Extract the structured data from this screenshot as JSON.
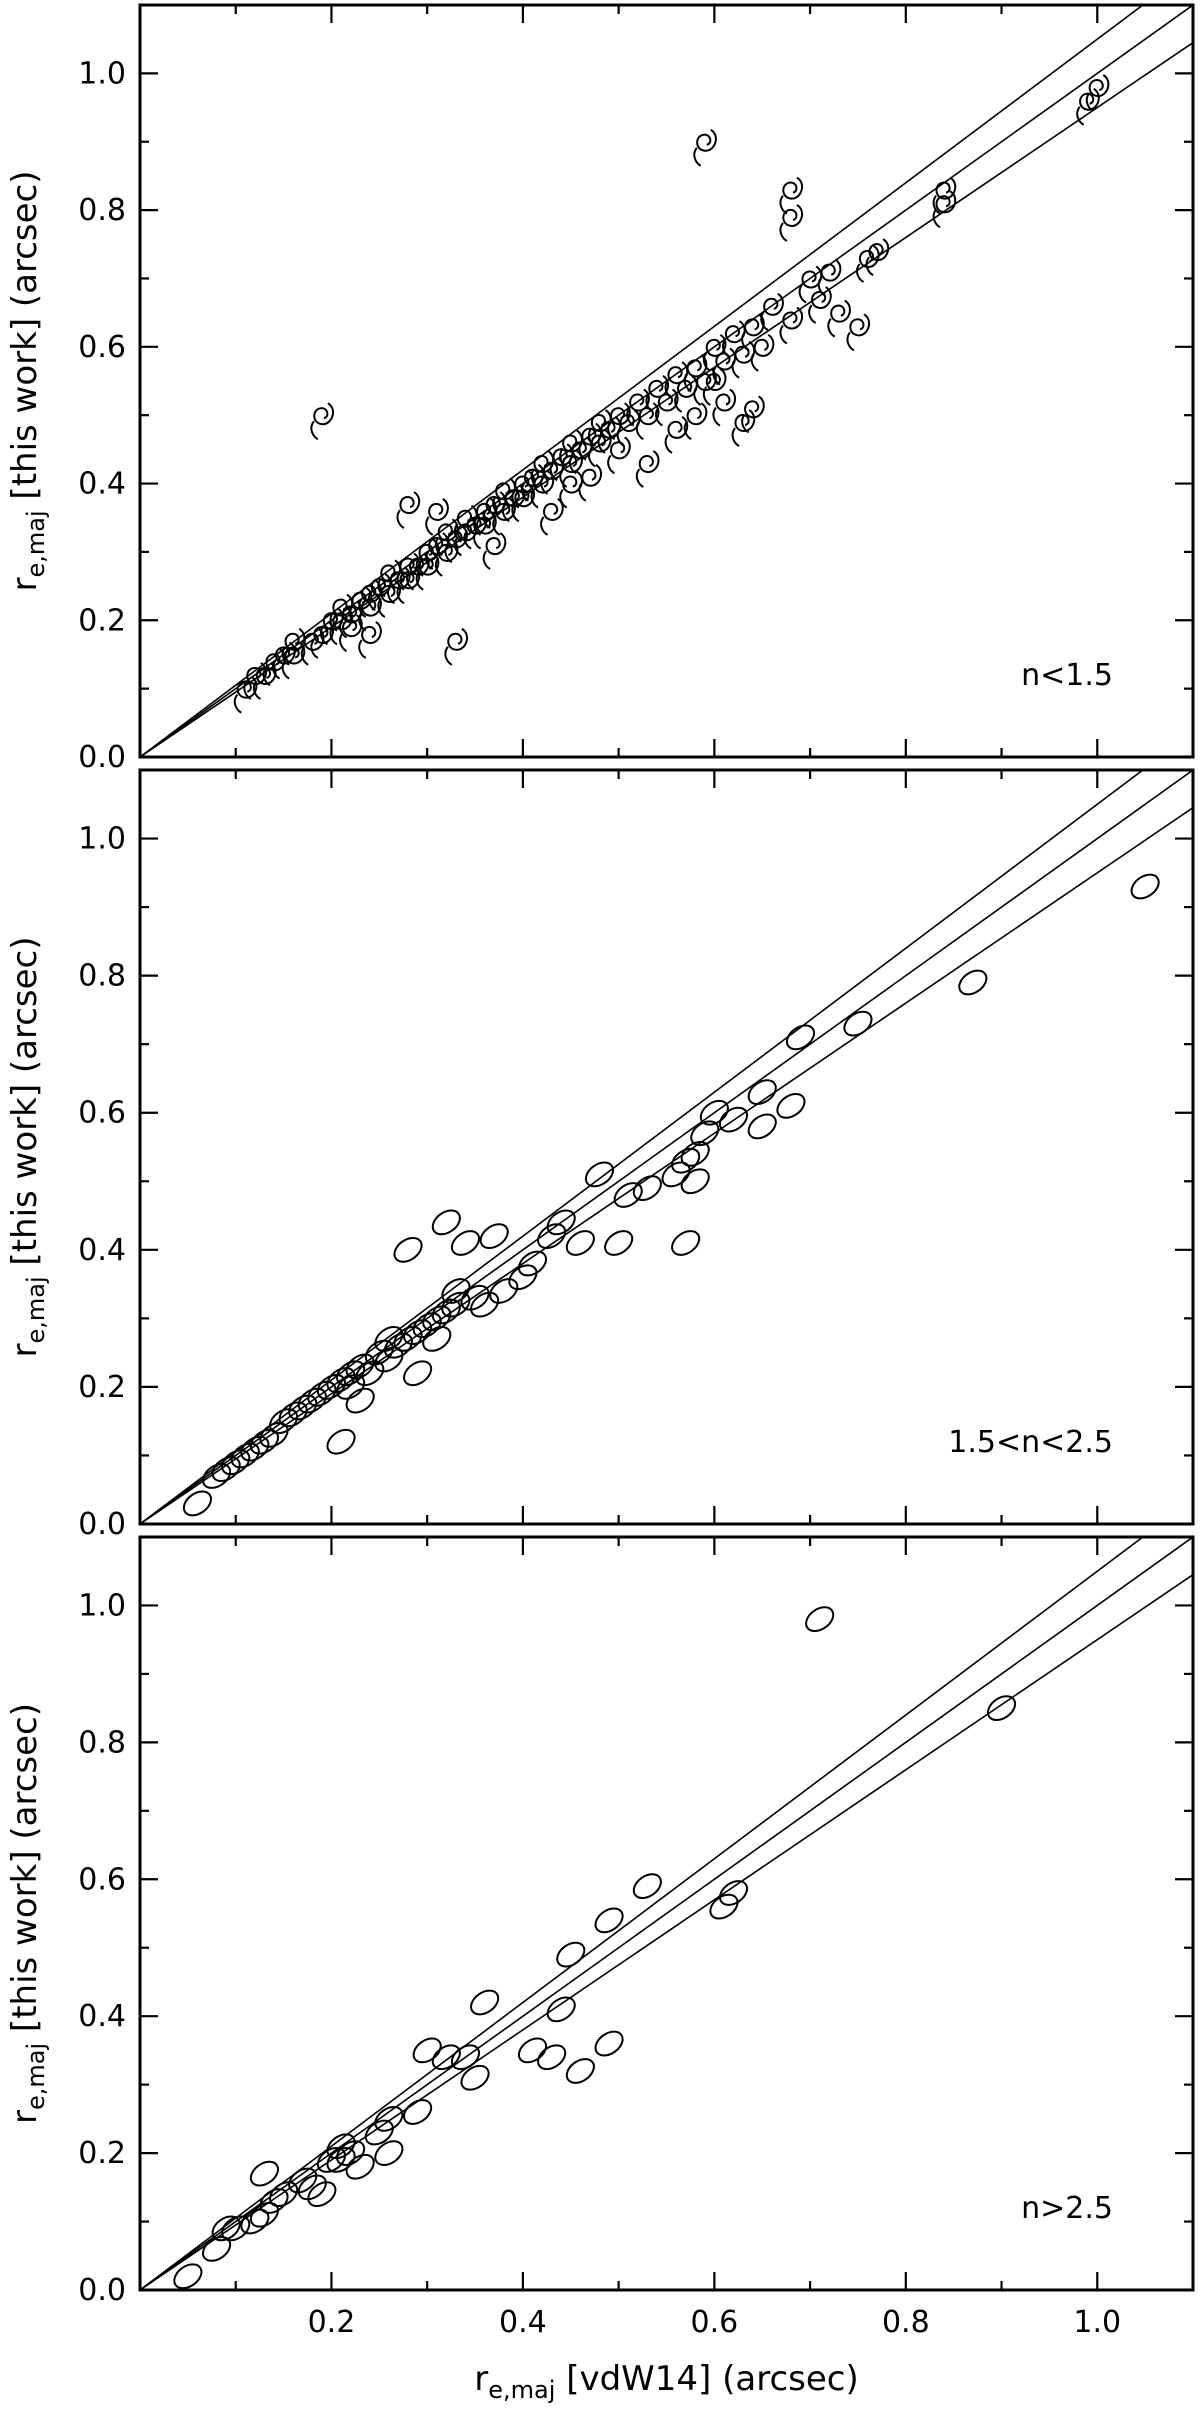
{
  "chart_data": [
    {
      "type": "scatter",
      "panel_label": "n<1.5",
      "marker": "spiral",
      "xlim": [
        0.0,
        1.1
      ],
      "ylim": [
        0.0,
        1.1
      ],
      "xticks": [
        "0.2",
        "0.4",
        "0.6",
        "0.8",
        "1.0"
      ],
      "yticks": [
        "0.0",
        "0.2",
        "0.4",
        "0.6",
        "0.8",
        "1.0"
      ],
      "show_xtick_labels": false,
      "ylabel": {
        "main": "r",
        "sub": "e,maj",
        "rest": " [this work] (arcsec)"
      },
      "xlabel": null,
      "ref_line_slopes": [
        0.95,
        1.0,
        1.05
      ],
      "points": [
        [
          0.11,
          0.1
        ],
        [
          0.12,
          0.12
        ],
        [
          0.13,
          0.12
        ],
        [
          0.14,
          0.14
        ],
        [
          0.15,
          0.15
        ],
        [
          0.16,
          0.15
        ],
        [
          0.16,
          0.17
        ],
        [
          0.18,
          0.17
        ],
        [
          0.19,
          0.18
        ],
        [
          0.2,
          0.2
        ],
        [
          0.21,
          0.2
        ],
        [
          0.21,
          0.22
        ],
        [
          0.22,
          0.21
        ],
        [
          0.23,
          0.23
        ],
        [
          0.24,
          0.24
        ],
        [
          0.24,
          0.22
        ],
        [
          0.25,
          0.25
        ],
        [
          0.26,
          0.24
        ],
        [
          0.26,
          0.27
        ],
        [
          0.27,
          0.26
        ],
        [
          0.28,
          0.28
        ],
        [
          0.28,
          0.26
        ],
        [
          0.29,
          0.28
        ],
        [
          0.3,
          0.3
        ],
        [
          0.3,
          0.28
        ],
        [
          0.31,
          0.31
        ],
        [
          0.32,
          0.3
        ],
        [
          0.32,
          0.33
        ],
        [
          0.33,
          0.32
        ],
        [
          0.34,
          0.33
        ],
        [
          0.34,
          0.35
        ],
        [
          0.35,
          0.34
        ],
        [
          0.36,
          0.36
        ],
        [
          0.36,
          0.34
        ],
        [
          0.37,
          0.37
        ],
        [
          0.38,
          0.36
        ],
        [
          0.38,
          0.39
        ],
        [
          0.39,
          0.38
        ],
        [
          0.4,
          0.4
        ],
        [
          0.4,
          0.38
        ],
        [
          0.41,
          0.41
        ],
        [
          0.42,
          0.4
        ],
        [
          0.42,
          0.43
        ],
        [
          0.43,
          0.42
        ],
        [
          0.44,
          0.44
        ],
        [
          0.45,
          0.43
        ],
        [
          0.45,
          0.46
        ],
        [
          0.46,
          0.45
        ],
        [
          0.47,
          0.47
        ],
        [
          0.48,
          0.46
        ],
        [
          0.48,
          0.49
        ],
        [
          0.49,
          0.48
        ],
        [
          0.5,
          0.5
        ],
        [
          0.51,
          0.49
        ],
        [
          0.52,
          0.52
        ],
        [
          0.53,
          0.5
        ],
        [
          0.54,
          0.54
        ],
        [
          0.55,
          0.52
        ],
        [
          0.56,
          0.56
        ],
        [
          0.57,
          0.54
        ],
        [
          0.58,
          0.57
        ],
        [
          0.59,
          0.55
        ],
        [
          0.6,
          0.6
        ],
        [
          0.61,
          0.58
        ],
        [
          0.62,
          0.62
        ],
        [
          0.63,
          0.59
        ],
        [
          0.64,
          0.63
        ],
        [
          0.65,
          0.6
        ],
        [
          0.66,
          0.66
        ],
        [
          0.68,
          0.64
        ],
        [
          0.7,
          0.7
        ],
        [
          0.71,
          0.67
        ],
        [
          0.72,
          0.71
        ],
        [
          0.73,
          0.65
        ],
        [
          0.75,
          0.63
        ],
        [
          0.76,
          0.73
        ],
        [
          0.77,
          0.74
        ],
        [
          0.84,
          0.83
        ],
        [
          0.84,
          0.81
        ],
        [
          0.99,
          0.96
        ],
        [
          1.0,
          0.98
        ],
        [
          0.19,
          0.5
        ],
        [
          0.59,
          0.9
        ],
        [
          0.68,
          0.83
        ],
        [
          0.68,
          0.79
        ],
        [
          0.33,
          0.17
        ],
        [
          0.53,
          0.43
        ],
        [
          0.58,
          0.5
        ],
        [
          0.63,
          0.49
        ],
        [
          0.61,
          0.52
        ],
        [
          0.64,
          0.51
        ],
        [
          0.47,
          0.41
        ],
        [
          0.5,
          0.45
        ],
        [
          0.28,
          0.37
        ],
        [
          0.31,
          0.36
        ],
        [
          0.22,
          0.19
        ],
        [
          0.24,
          0.18
        ],
        [
          0.37,
          0.31
        ],
        [
          0.43,
          0.36
        ],
        [
          0.45,
          0.4
        ],
        [
          0.56,
          0.48
        ],
        [
          0.6,
          0.55
        ]
      ]
    },
    {
      "type": "scatter",
      "panel_label": "1.5<n<2.5",
      "marker": "ellipse",
      "xlim": [
        0.0,
        1.1
      ],
      "ylim": [
        0.0,
        1.1
      ],
      "xticks": [
        "0.2",
        "0.4",
        "0.6",
        "0.8",
        "1.0"
      ],
      "yticks": [
        "0.0",
        "0.2",
        "0.4",
        "0.6",
        "0.8",
        "1.0"
      ],
      "show_xtick_labels": false,
      "ylabel": {
        "main": "r",
        "sub": "e,maj",
        "rest": " [this work] (arcsec)"
      },
      "xlabel": null,
      "ref_line_slopes": [
        0.95,
        1.0,
        1.05
      ],
      "points": [
        [
          0.06,
          0.03
        ],
        [
          0.08,
          0.07
        ],
        [
          0.09,
          0.08
        ],
        [
          0.1,
          0.09
        ],
        [
          0.11,
          0.1
        ],
        [
          0.12,
          0.11
        ],
        [
          0.13,
          0.12
        ],
        [
          0.14,
          0.13
        ],
        [
          0.15,
          0.15
        ],
        [
          0.16,
          0.16
        ],
        [
          0.17,
          0.17
        ],
        [
          0.18,
          0.18
        ],
        [
          0.19,
          0.19
        ],
        [
          0.2,
          0.2
        ],
        [
          0.21,
          0.21
        ],
        [
          0.22,
          0.22
        ],
        [
          0.22,
          0.2
        ],
        [
          0.23,
          0.23
        ],
        [
          0.24,
          0.22
        ],
        [
          0.25,
          0.25
        ],
        [
          0.26,
          0.24
        ],
        [
          0.27,
          0.26
        ],
        [
          0.28,
          0.27
        ],
        [
          0.29,
          0.28
        ],
        [
          0.3,
          0.29
        ],
        [
          0.31,
          0.3
        ],
        [
          0.32,
          0.31
        ],
        [
          0.33,
          0.32
        ],
        [
          0.33,
          0.34
        ],
        [
          0.35,
          0.33
        ],
        [
          0.36,
          0.32
        ],
        [
          0.38,
          0.34
        ],
        [
          0.4,
          0.36
        ],
        [
          0.41,
          0.38
        ],
        [
          0.43,
          0.42
        ],
        [
          0.44,
          0.44
        ],
        [
          0.46,
          0.41
        ],
        [
          0.48,
          0.51
        ],
        [
          0.5,
          0.41
        ],
        [
          0.51,
          0.48
        ],
        [
          0.53,
          0.49
        ],
        [
          0.56,
          0.51
        ],
        [
          0.57,
          0.53
        ],
        [
          0.58,
          0.5
        ],
        [
          0.58,
          0.54
        ],
        [
          0.59,
          0.57
        ],
        [
          0.6,
          0.6
        ],
        [
          0.62,
          0.59
        ],
        [
          0.65,
          0.58
        ],
        [
          0.65,
          0.63
        ],
        [
          0.68,
          0.61
        ],
        [
          0.69,
          0.71
        ],
        [
          0.75,
          0.73
        ],
        [
          0.87,
          0.79
        ],
        [
          1.05,
          0.93
        ],
        [
          0.28,
          0.4
        ],
        [
          0.32,
          0.44
        ],
        [
          0.34,
          0.41
        ],
        [
          0.37,
          0.42
        ],
        [
          0.57,
          0.41
        ],
        [
          0.21,
          0.12
        ],
        [
          0.23,
          0.18
        ],
        [
          0.29,
          0.22
        ],
        [
          0.26,
          0.27
        ],
        [
          0.31,
          0.27
        ]
      ]
    },
    {
      "type": "scatter",
      "panel_label": "n>2.5",
      "marker": "ellipse",
      "xlim": [
        0.0,
        1.1
      ],
      "ylim": [
        0.0,
        1.1
      ],
      "xticks": [
        "0.2",
        "0.4",
        "0.6",
        "0.8",
        "1.0"
      ],
      "yticks": [
        "0.0",
        "0.2",
        "0.4",
        "0.6",
        "0.8",
        "1.0"
      ],
      "show_xtick_labels": true,
      "ylabel": {
        "main": "r",
        "sub": "e,maj",
        "rest": " [this work] (arcsec)"
      },
      "xlabel": {
        "main": "r",
        "sub": "e,maj",
        "rest": " [vdW14] (arcsec)"
      },
      "ref_line_slopes": [
        0.95,
        1.0,
        1.05
      ],
      "points": [
        [
          0.05,
          0.02
        ],
        [
          0.08,
          0.06
        ],
        [
          0.09,
          0.09
        ],
        [
          0.1,
          0.09
        ],
        [
          0.12,
          0.1
        ],
        [
          0.13,
          0.11
        ],
        [
          0.13,
          0.17
        ],
        [
          0.14,
          0.13
        ],
        [
          0.15,
          0.14
        ],
        [
          0.17,
          0.16
        ],
        [
          0.18,
          0.15
        ],
        [
          0.19,
          0.14
        ],
        [
          0.2,
          0.19
        ],
        [
          0.21,
          0.21
        ],
        [
          0.21,
          0.19
        ],
        [
          0.22,
          0.2
        ],
        [
          0.23,
          0.18
        ],
        [
          0.25,
          0.23
        ],
        [
          0.26,
          0.25
        ],
        [
          0.26,
          0.2
        ],
        [
          0.29,
          0.26
        ],
        [
          0.3,
          0.35
        ],
        [
          0.32,
          0.34
        ],
        [
          0.34,
          0.34
        ],
        [
          0.35,
          0.31
        ],
        [
          0.36,
          0.42
        ],
        [
          0.41,
          0.35
        ],
        [
          0.43,
          0.34
        ],
        [
          0.44,
          0.41
        ],
        [
          0.45,
          0.49
        ],
        [
          0.46,
          0.32
        ],
        [
          0.49,
          0.54
        ],
        [
          0.49,
          0.36
        ],
        [
          0.53,
          0.59
        ],
        [
          0.61,
          0.56
        ],
        [
          0.62,
          0.58
        ],
        [
          0.71,
          0.98
        ],
        [
          0.9,
          0.85
        ]
      ]
    }
  ]
}
